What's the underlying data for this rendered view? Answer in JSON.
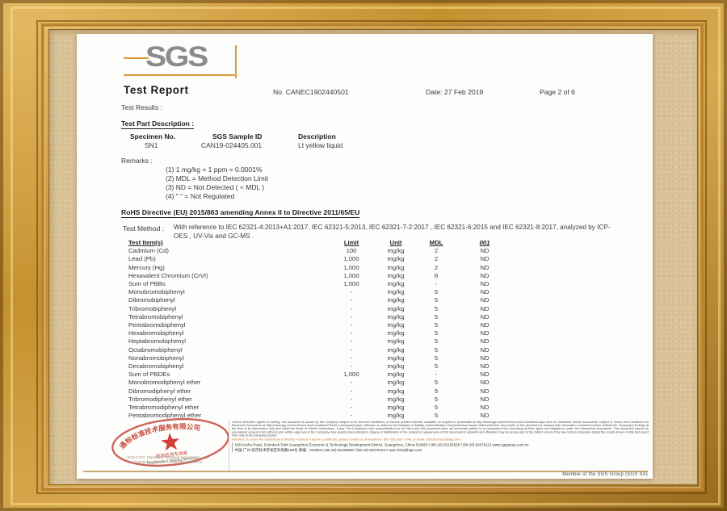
{
  "colors": {
    "accent_orange": "#D99B3A",
    "logo_gray": "#8A8B8E",
    "stamp_red": "#C0392B",
    "matte_tan": "#D9C197",
    "frame_gold": "#C4912F",
    "attention_orange": "#C9762B",
    "gold_rule": "#C9A873"
  },
  "document": {
    "logo": {
      "text": "SGS"
    },
    "header": {
      "title": "Test Report",
      "report_no": "No. CANEC1902440501",
      "date": "Date: 27 Feb 2019",
      "page": "Page 2 of 6"
    },
    "test_results_label": "Test Results :",
    "part_description": {
      "heading": "Test Part Description :",
      "columns": [
        "Specimen No.",
        "SGS Sample ID",
        "Description"
      ],
      "rows": [
        [
          "SN1",
          "CAN19-024405.001",
          "Lt yellow liquid"
        ]
      ]
    },
    "remarks": {
      "label": "Remarks :",
      "lines": [
        "(1) 1 mg/kg = 1 ppm = 0.0001%",
        "(2) MDL = Method Detection Limit",
        "(3) ND = Not Detected ( < MDL )",
        "(4) \" \" = Not Regulated"
      ]
    },
    "rohs": {
      "heading": "RoHS Directive (EU) 2015/863 amending Annex II to Directive 2011/65/EU",
      "test_method_label": "Test Method :",
      "test_method_text": "With reference to IEC 62321-4:2013+A1:2017, IEC 62321-5:2013,  IEC 62321-7-2:2017 , IEC 62321-6:2015  and IEC 62321-8:2017,  analyzed by ICP-OES , UV-Vis  and GC-MS ."
    },
    "results_table": {
      "headers": [
        "Test Item(s)",
        "Limit",
        "Unit",
        "MDL",
        "001"
      ],
      "rows": [
        [
          "Cadmium (Cd)",
          "100",
          "mg/kg",
          "2",
          "ND"
        ],
        [
          "Lead (Pb)",
          "1,000",
          "mg/kg",
          "2",
          "ND"
        ],
        [
          "Mercury (Hg)",
          "1,000",
          "mg/kg",
          "2",
          "ND"
        ],
        [
          "Hexavalent Chromium (CrVI)",
          "1,000",
          "mg/kg",
          "8",
          "ND"
        ],
        [
          "Sum of PBBs",
          "1,000",
          "mg/kg",
          "-",
          "ND"
        ],
        [
          "Monobromobiphenyl",
          "-",
          "mg/kg",
          "5",
          "ND"
        ],
        [
          "Dibromobiphenyl",
          "-",
          "mg/kg",
          "5",
          "ND"
        ],
        [
          "Tribromobiphenyl",
          "-",
          "mg/kg",
          "5",
          "ND"
        ],
        [
          "Tetrabromobiphenyl",
          "-",
          "mg/kg",
          "5",
          "ND"
        ],
        [
          "Pentabromobiphenyl",
          "-",
          "mg/kg",
          "5",
          "ND"
        ],
        [
          "Hexabromobiphenyl",
          "-",
          "mg/kg",
          "5",
          "ND"
        ],
        [
          "Heptabromobiphenyl",
          "-",
          "mg/kg",
          "5",
          "ND"
        ],
        [
          "Octabromobiphenyl",
          "-",
          "mg/kg",
          "5",
          "ND"
        ],
        [
          "Nonabromobiphenyl",
          "-",
          "mg/kg",
          "5",
          "ND"
        ],
        [
          "Decabromobiphenyl",
          "-",
          "mg/kg",
          "5",
          "ND"
        ],
        [
          "Sum of PBDEs",
          "1,000",
          "mg/kg",
          "-",
          "ND"
        ],
        [
          "Monobromodiphenyl ether",
          "-",
          "mg/kg",
          "5",
          "ND"
        ],
        [
          "Dibromodiphenyl ether",
          "-",
          "mg/kg",
          "5",
          "ND"
        ],
        [
          "Tribromodiphenyl ether",
          "-",
          "mg/kg",
          "5",
          "ND"
        ],
        [
          "Tetrabromodiphenyl ether",
          "-",
          "mg/kg",
          "5",
          "ND"
        ],
        [
          "Pentabromodiphenyl ether",
          "-",
          "mg/kg",
          "5",
          "ND"
        ]
      ]
    },
    "footer": {
      "stamp": {
        "ring_text": "通标标准技术服务有限公司",
        "seal_line": "检验检测专用章",
        "english_line": "Inspection & Testing Services"
      },
      "company_line1": "SGS-CSTC Standards Technical Services Co., Ltd.",
      "company_line2": "Guangzhou Branch - Chemical Laboratory",
      "legal_paragraph": "Unless otherwise agreed in writing, this document is issued by the Company subject to its General Conditions of Service printed overleaf, available on request or accessible at http://www.sgs.com/en/Terms-and-Conditions.aspx and, for electronic format documents, subject to Terms and Conditions for Electronic Documents at http://www.sgs.com/en/Terms-and-Conditions/Terms-e-Document.aspx. Attention is drawn to the limitation of liability, indemnification and jurisdiction issues defined therein. Any holder of this document is advised that information contained hereon reflects the Company's findings at the time of its intervention only and within the limits of Client's instructions, if any. The Company's sole responsibility is to its Client and this document does not exonerate parties to a transaction from exercising all their rights and obligations under the transaction documents. This document cannot be reproduced except in full, without prior written approval of the Company. Any unauthorized alteration, forgery or falsification of the content or appearance of this document is unlawful and offenders may be prosecuted to the fullest extent of the law. Unless otherwise stated the results shown in this test report refer only to the sample(s) tested.",
      "attention_line": "Attention: To check the authenticity of testing / inspection report & certificate, please contact us at telephone: (86-755) 8307 1443, or email: CN.Doccheck@sgs.com",
      "address_line1": "198 Kezhu Road, Scientech Park Guangzhou Economic & Technology Development District, Guangzhou, China  510663    t (86-20) 82155555    f (86-20) 82075113    www.sgsgroup.com.cn",
      "address_line2": "中国·广州·经济技术开发区科珠路198号    邮编：510663    t (86-20) 82155555    f (86-20) 82075113    e sgs.china@sgs.com",
      "member_line": "Member of the SGS Group (SGS SA)"
    }
  }
}
